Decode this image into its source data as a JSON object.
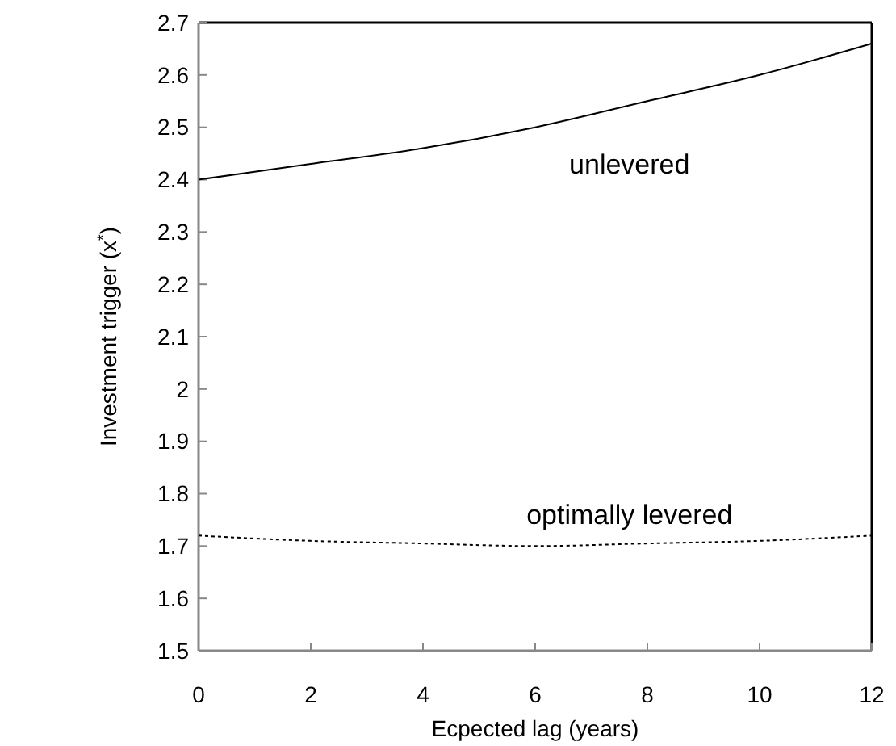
{
  "chart_data": {
    "type": "line",
    "xlabel": "Ecpected lag (years)",
    "ylabel": "Investment trigger (x$^{*}$)",
    "x": [
      0,
      2,
      4,
      6,
      8,
      10,
      12
    ],
    "series": [
      {
        "name": "unlevered",
        "color": "#000000",
        "line_style": "solid",
        "values": [
          2.4,
          2.43,
          2.46,
          2.5,
          2.55,
          2.6,
          2.66
        ]
      },
      {
        "name": "optimally levered",
        "color": "#000000",
        "line_style": "dotted",
        "values": [
          1.72,
          1.71,
          1.705,
          1.7,
          1.705,
          1.71,
          1.72
        ]
      }
    ],
    "xlim": [
      0,
      12
    ],
    "xticks": [
      0,
      2,
      4,
      6,
      8,
      10,
      12
    ],
    "ylim": [
      1.5,
      2.7
    ],
    "yticks": [
      1.5,
      1.6,
      1.7,
      1.8,
      1.9,
      2,
      2.1,
      2.2,
      2.3,
      2.4,
      2.5,
      2.6,
      2.7
    ],
    "grid": false,
    "marker": "none"
  }
}
